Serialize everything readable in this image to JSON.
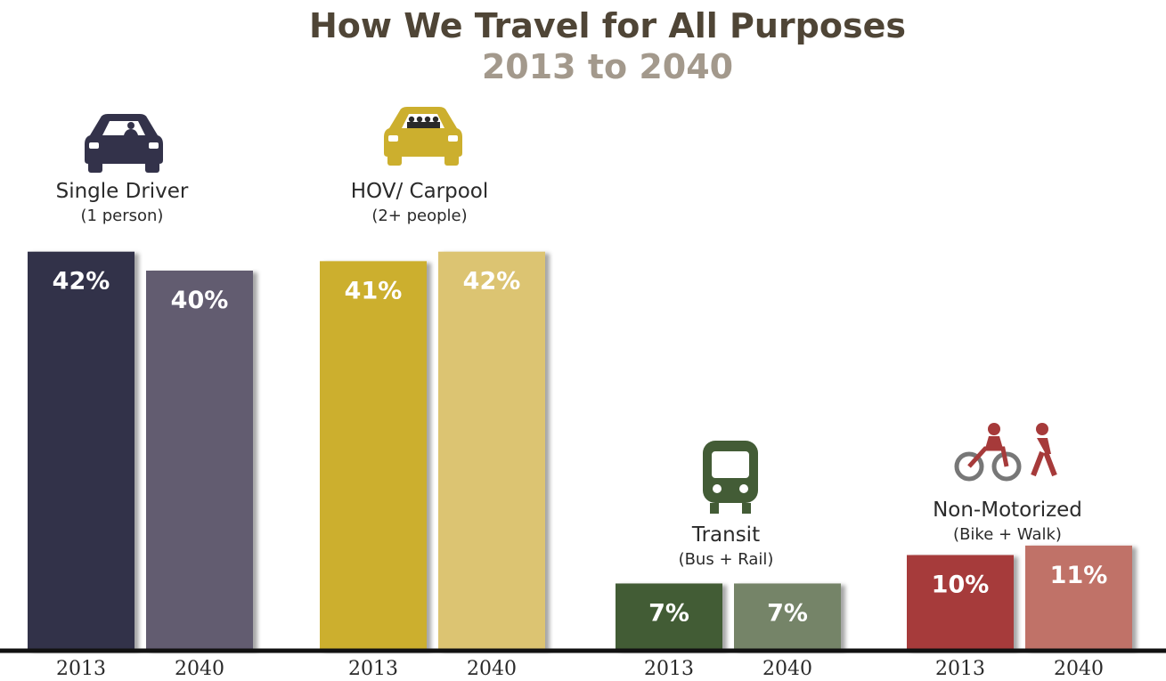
{
  "chart_data": {
    "type": "bar",
    "title": "How We Travel for All Purposes",
    "subtitle": "2013 to 2040",
    "ylim": [
      0,
      45
    ],
    "grid": false,
    "categories": [
      {
        "label": "Single Driver",
        "sublabel": "(1 person)",
        "icon": "car-single-driver-icon",
        "colors": [
          "#33324a",
          "#625b70"
        ],
        "bars": [
          {
            "year": "2013",
            "value": 42,
            "display": "42%"
          },
          {
            "year": "2040",
            "value": 40,
            "display": "40%"
          }
        ]
      },
      {
        "label": "HOV/ Carpool",
        "sublabel": "(2+ people)",
        "icon": "car-carpool-icon",
        "colors": [
          "#ccaf2e",
          "#dcc472"
        ],
        "bars": [
          {
            "year": "2013",
            "value": 41,
            "display": "41%"
          },
          {
            "year": "2040",
            "value": 42,
            "display": "42%"
          }
        ]
      },
      {
        "label": "Transit",
        "sublabel": "(Bus + Rail)",
        "icon": "train-icon",
        "colors": [
          "#435c36",
          "#758468"
        ],
        "bars": [
          {
            "year": "2013",
            "value": 7,
            "display": "7%"
          },
          {
            "year": "2040",
            "value": 7,
            "display": "7%"
          }
        ]
      },
      {
        "label": "Non-Motorized",
        "sublabel": "(Bike + Walk)",
        "icon": "bike-walk-icon",
        "colors": [
          "#a63a3a",
          "#c07268"
        ],
        "bars": [
          {
            "year": "2013",
            "value": 10,
            "display": "10%"
          },
          {
            "year": "2040",
            "value": 11,
            "display": "11%"
          }
        ]
      }
    ]
  }
}
